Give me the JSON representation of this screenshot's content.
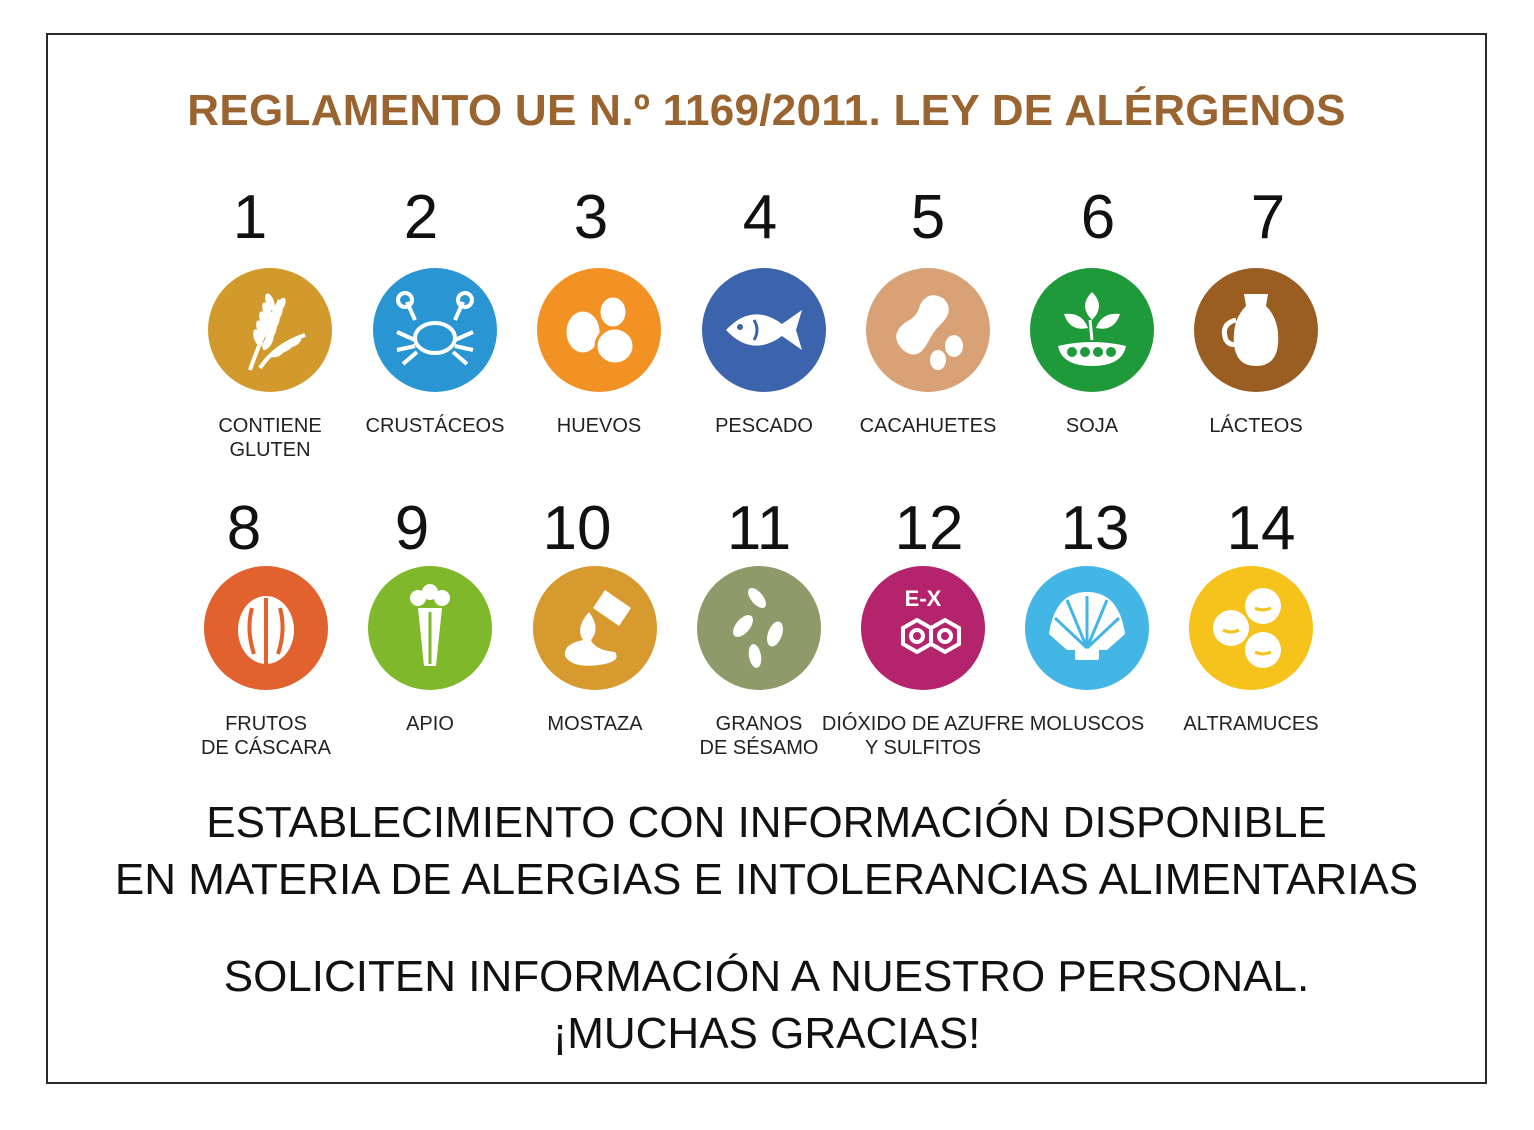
{
  "title": "REGLAMENTO UE N.º 1169/2011. LEY DE ALÉRGENOS",
  "allergens": [
    {
      "number": "1",
      "label": "CONTIENE\nGLUTEN",
      "icon": "wheat-icon",
      "color": "#d29a2c"
    },
    {
      "number": "2",
      "label": "CRUSTÁCEOS",
      "icon": "crab-icon",
      "color": "#2a95d3"
    },
    {
      "number": "3",
      "label": "HUEVOS",
      "icon": "eggs-icon",
      "color": "#f39224"
    },
    {
      "number": "4",
      "label": "PESCADO",
      "icon": "fish-icon",
      "color": "#3c64ad"
    },
    {
      "number": "5",
      "label": "CACAHUETES",
      "icon": "peanut-icon",
      "color": "#d8a276"
    },
    {
      "number": "6",
      "label": "SOJA",
      "icon": "soy-icon",
      "color": "#1f9a3a"
    },
    {
      "number": "7",
      "label": "LÁCTEOS",
      "icon": "milk-jug-icon",
      "color": "#9a5e22"
    },
    {
      "number": "8",
      "label": "FRUTOS\nDE CÁSCARA",
      "icon": "walnut-icon",
      "color": "#e1622e"
    },
    {
      "number": "9",
      "label": "APIO",
      "icon": "celery-icon",
      "color": "#7fb82a"
    },
    {
      "number": "10",
      "label": "MOSTAZA",
      "icon": "mustard-icon",
      "color": "#d69a2e"
    },
    {
      "number": "11",
      "label": "GRANOS\nDE SÉSAMO",
      "icon": "sesame-icon",
      "color": "#8f9a6a"
    },
    {
      "number": "12",
      "label": "DIÓXIDO DE AZUFRE\nY SULFITOS",
      "icon": "sulfite-icon",
      "color": "#b3246d"
    },
    {
      "number": "13",
      "label": "MOLUSCOS",
      "icon": "shell-icon",
      "color": "#44b6e6"
    },
    {
      "number": "14",
      "label": "ALTRAMUCES",
      "icon": "lupin-icon",
      "color": "#f6c21c"
    }
  ],
  "notice": {
    "line1": "ESTABLECIMIENTO CON INFORMACIÓN DISPONIBLE\nEN MATERIA DE ALERGIAS E INTOLERANCIAS ALIMENTARIAS",
    "line2": "SOLICITEN INFORMACIÓN A NUESTRO PERSONAL.\n¡MUCHAS GRACIAS!"
  },
  "sulfite_text": "E-X"
}
